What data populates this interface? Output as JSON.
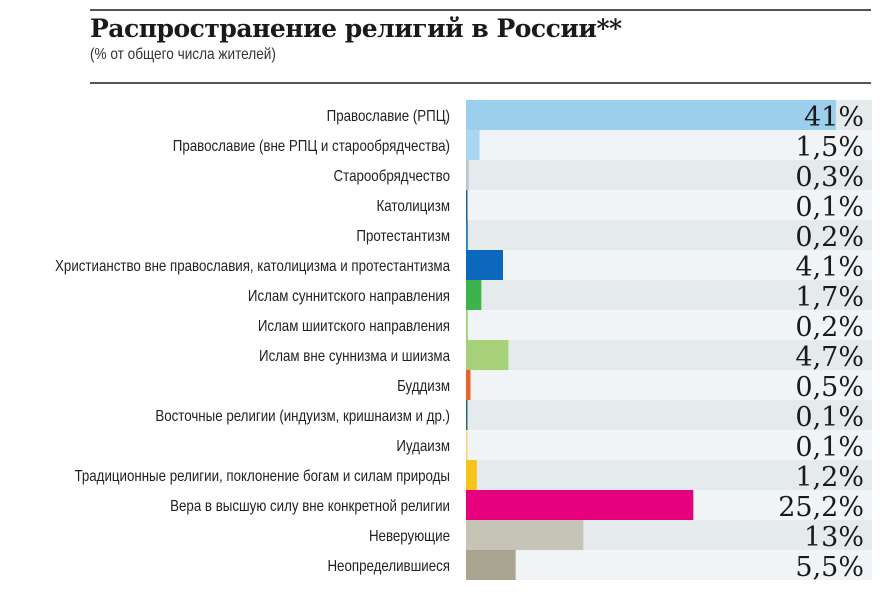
{
  "chart_data": {
    "type": "bar",
    "orientation": "horizontal",
    "title": "Распространение религий в России**",
    "subtitle": "(% от общего числа жителей)",
    "xlim": [
      0,
      45
    ],
    "grid": false,
    "categories": [
      "Православие (РПЦ)",
      "Православие (вне РПЦ и старообрядчества)",
      "Старообрядчество",
      "Католицизм",
      "Протестантизм",
      "Христианство вне православия, католицизма и протестантизма",
      "Ислам суннитского направления",
      "Ислам шиитского направления",
      "Ислам вне суннизма и шиизма",
      "Буддизм",
      "Восточные религии (индуизм, кришнаизм и др.)",
      "Иудаизм",
      "Традиционные религии, поклонение богам и силам природы",
      "Вера в высшую силу вне конкретной религии",
      "Неверующие",
      "Неопределившиеся"
    ],
    "values": [
      41,
      1.5,
      0.3,
      0.1,
      0.2,
      4.1,
      1.7,
      0.2,
      4.7,
      0.5,
      0.1,
      0.1,
      1.2,
      25.2,
      13,
      5.5
    ],
    "labels": [
      "41%",
      "1,5%",
      "0,3%",
      "0,1%",
      "0,2%",
      "4,1%",
      "1,7%",
      "0,2%",
      "4,7%",
      "0,5%",
      "0,1%",
      "0,1%",
      "1,2%",
      "25,2%",
      "13%",
      "5,5%"
    ],
    "colors": [
      "#9ccfec",
      "#a9d7f1",
      "#b9c6cc",
      "#1f5f9a",
      "#2a7ab8",
      "#0b68bd",
      "#3cb44b",
      "#9fce6a",
      "#a7d07b",
      "#e8632a",
      "#1f6f6a",
      "#f1d77a",
      "#f8c41a",
      "#e6007e",
      "#c5c4b6",
      "#a9a590"
    ],
    "row_backgrounds": [
      "#e5eaec",
      "#f1f4f6"
    ]
  }
}
